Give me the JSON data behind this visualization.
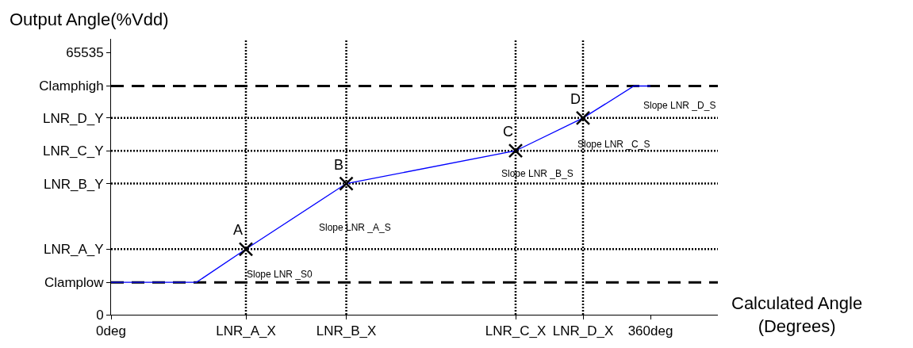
{
  "chart_data": {
    "type": "line",
    "xlabel": "Calculated Angle\n(Degrees)",
    "ylabel": "Output Angle(%Vdd)",
    "xlim": [
      0,
      405
    ],
    "ylim": [
      0,
      69000
    ],
    "xticks": [
      {
        "value": 0,
        "label": "0deg"
      },
      {
        "value": 90,
        "label": "LNR_A_X"
      },
      {
        "value": 157,
        "label": "LNR_B_X"
      },
      {
        "value": 270,
        "label": "LNR_C_X"
      },
      {
        "value": 315,
        "label": "LNR_D_X"
      },
      {
        "value": 360,
        "label": "360deg"
      }
    ],
    "yticks": [
      0,
      {
        "value": 8100,
        "label": "Clamplow"
      },
      {
        "value": 16400,
        "label": "LNR_A_Y"
      },
      {
        "value": 32800,
        "label": "LNR_B_Y"
      },
      {
        "value": 41000,
        "label": "LNR_C_Y"
      },
      {
        "value": 49200,
        "label": "LNR_D_Y"
      },
      {
        "value": 57200,
        "label": "Clamphigh"
      },
      65535
    ],
    "series": [
      {
        "color": "#0000ff",
        "marker": "none",
        "line_style": "solid",
        "x": [
          0,
          57,
          90,
          157,
          270,
          315,
          349,
          360
        ],
        "values": [
          8100,
          8100,
          16400,
          32800,
          41000,
          49200,
          57200,
          57200
        ]
      },
      {
        "type": "scatter",
        "color": "#000000",
        "marker": "cross",
        "x": [
          90,
          157,
          270,
          315
        ],
        "values": [
          16400,
          32800,
          41000,
          49200
        ]
      }
    ],
    "ref_lines": [
      {
        "axis": "y",
        "value": 8100,
        "color": "#000000",
        "line_style": "dashed"
      },
      {
        "axis": "y",
        "value": 57200,
        "color": "#000000",
        "line_style": "dashed"
      },
      {
        "axis": "y",
        "value": 16400,
        "color": "#000000",
        "line_style": "dotted"
      },
      {
        "axis": "y",
        "value": 32800,
        "color": "#000000",
        "line_style": "dotted"
      },
      {
        "axis": "y",
        "value": 41000,
        "color": "#000000",
        "line_style": "dotted"
      },
      {
        "axis": "y",
        "value": 49200,
        "color": "#000000",
        "line_style": "dotted"
      },
      {
        "axis": "x",
        "value": 90,
        "color": "#000000",
        "line_style": "dotted"
      },
      {
        "axis": "x",
        "value": 157,
        "color": "#000000",
        "line_style": "dotted"
      },
      {
        "axis": "x",
        "value": 270,
        "color": "#000000",
        "line_style": "dotted"
      },
      {
        "axis": "x",
        "value": 315,
        "color": "#000000",
        "line_style": "dotted"
      }
    ],
    "annotations": [
      {
        "text": "A",
        "x": 90,
        "y": 16400
      },
      {
        "text": "B",
        "x": 157,
        "y": 32800
      },
      {
        "text": "C",
        "x": 270,
        "y": 41000
      },
      {
        "text": "D",
        "x": 315,
        "y": 49200
      },
      {
        "text": "Slope LNR _S0",
        "x": 82,
        "y": 14400
      },
      {
        "text": "Slope LNR _A_S",
        "x": 130,
        "y": 26100
      },
      {
        "text": "Slope LNR _B_S",
        "x": 252,
        "y": 39700
      },
      {
        "text": "Slope LNR _C_S",
        "x": 303,
        "y": 47000
      },
      {
        "text": "Slope LNR _D_S",
        "x": 347,
        "y": 56700
      }
    ],
    "grid": false
  }
}
